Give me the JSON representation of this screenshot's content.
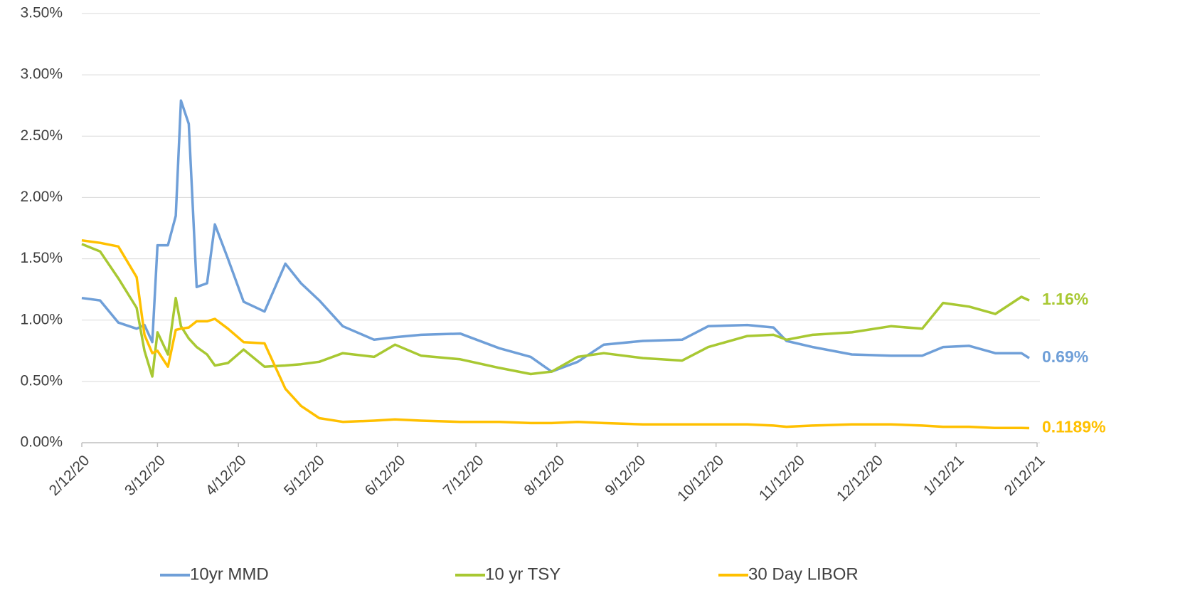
{
  "chart_data": {
    "type": "line",
    "x": [
      "2/12/20",
      "2/19/20",
      "2/26/20",
      "3/4/20",
      "3/7/20",
      "3/10/20",
      "3/12/20",
      "3/16/20",
      "3/19/20",
      "3/21/20",
      "3/24/20",
      "3/27/20",
      "3/31/20",
      "4/3/20",
      "4/8/20",
      "4/14/20",
      "4/22/20",
      "4/30/20",
      "5/6/20",
      "5/13/20",
      "5/22/20",
      "6/3/20",
      "6/11/20",
      "6/21/20",
      "7/6/20",
      "7/21/20",
      "8/2/20",
      "8/10/20",
      "8/20/20",
      "8/30/20",
      "9/14/20",
      "9/29/20",
      "10/9/20",
      "10/24/20",
      "11/3/20",
      "11/8/20",
      "11/18/20",
      "12/3/20",
      "12/18/20",
      "12/30/20",
      "1/7/21",
      "1/17/21",
      "1/27/21",
      "2/6/21",
      "2/9/21"
    ],
    "series": [
      {
        "name": "10yr MMD",
        "color": "#6f9fd8",
        "end_label": "0.69%",
        "values": [
          1.18,
          1.16,
          0.98,
          0.93,
          0.96,
          0.82,
          1.61,
          1.61,
          1.85,
          2.79,
          2.6,
          1.27,
          1.3,
          1.78,
          1.5,
          1.15,
          1.07,
          1.46,
          1.3,
          1.16,
          0.95,
          0.84,
          0.86,
          0.88,
          0.89,
          0.77,
          0.7,
          0.58,
          0.66,
          0.8,
          0.83,
          0.84,
          0.95,
          0.96,
          0.94,
          0.83,
          0.78,
          0.72,
          0.71,
          0.71,
          0.78,
          0.79,
          0.73,
          0.73,
          0.69
        ]
      },
      {
        "name": "10 yr TSY",
        "color": "#a8c832",
        "end_label": "1.16%",
        "values": [
          1.62,
          1.56,
          1.34,
          1.1,
          0.75,
          0.54,
          0.9,
          0.72,
          1.18,
          0.95,
          0.85,
          0.78,
          0.72,
          0.63,
          0.65,
          0.76,
          0.62,
          0.63,
          0.64,
          0.66,
          0.73,
          0.7,
          0.8,
          0.71,
          0.68,
          0.61,
          0.56,
          0.58,
          0.7,
          0.73,
          0.69,
          0.67,
          0.78,
          0.87,
          0.88,
          0.84,
          0.88,
          0.9,
          0.95,
          0.93,
          1.14,
          1.11,
          1.05,
          1.19,
          1.16
        ]
      },
      {
        "name": "30 Day LIBOR",
        "color": "#ffc000",
        "end_label": "0.1189%",
        "values": [
          1.65,
          1.63,
          1.6,
          1.35,
          0.88,
          0.73,
          0.75,
          0.62,
          0.92,
          0.93,
          0.94,
          0.99,
          0.99,
          1.01,
          0.93,
          0.82,
          0.81,
          0.44,
          0.3,
          0.2,
          0.17,
          0.18,
          0.19,
          0.18,
          0.17,
          0.17,
          0.16,
          0.16,
          0.17,
          0.16,
          0.15,
          0.15,
          0.15,
          0.15,
          0.14,
          0.13,
          0.14,
          0.15,
          0.15,
          0.14,
          0.13,
          0.13,
          0.12,
          0.12,
          0.1189
        ]
      }
    ],
    "xlim": [
      "2/12/20",
      "2/12/21"
    ],
    "xticks": [
      "2/12/20",
      "3/12/20",
      "4/12/20",
      "5/12/20",
      "6/12/20",
      "7/12/20",
      "8/12/20",
      "9/12/20",
      "10/12/20",
      "11/12/20",
      "12/12/20",
      "1/12/21",
      "2/12/21"
    ],
    "ylim": [
      0,
      3.5
    ],
    "yticks": [
      {
        "value": 0,
        "label": "0.00%"
      },
      {
        "value": 0.5,
        "label": "0.50%"
      },
      {
        "value": 1,
        "label": "1.00%"
      },
      {
        "value": 1.5,
        "label": "1.50%"
      },
      {
        "value": 2,
        "label": "2.00%"
      },
      {
        "value": 2.5,
        "label": "2.50%"
      },
      {
        "value": 3,
        "label": "3.00%"
      },
      {
        "value": 3.5,
        "label": "3.50%"
      }
    ],
    "grid": true,
    "legend": "bottom"
  }
}
